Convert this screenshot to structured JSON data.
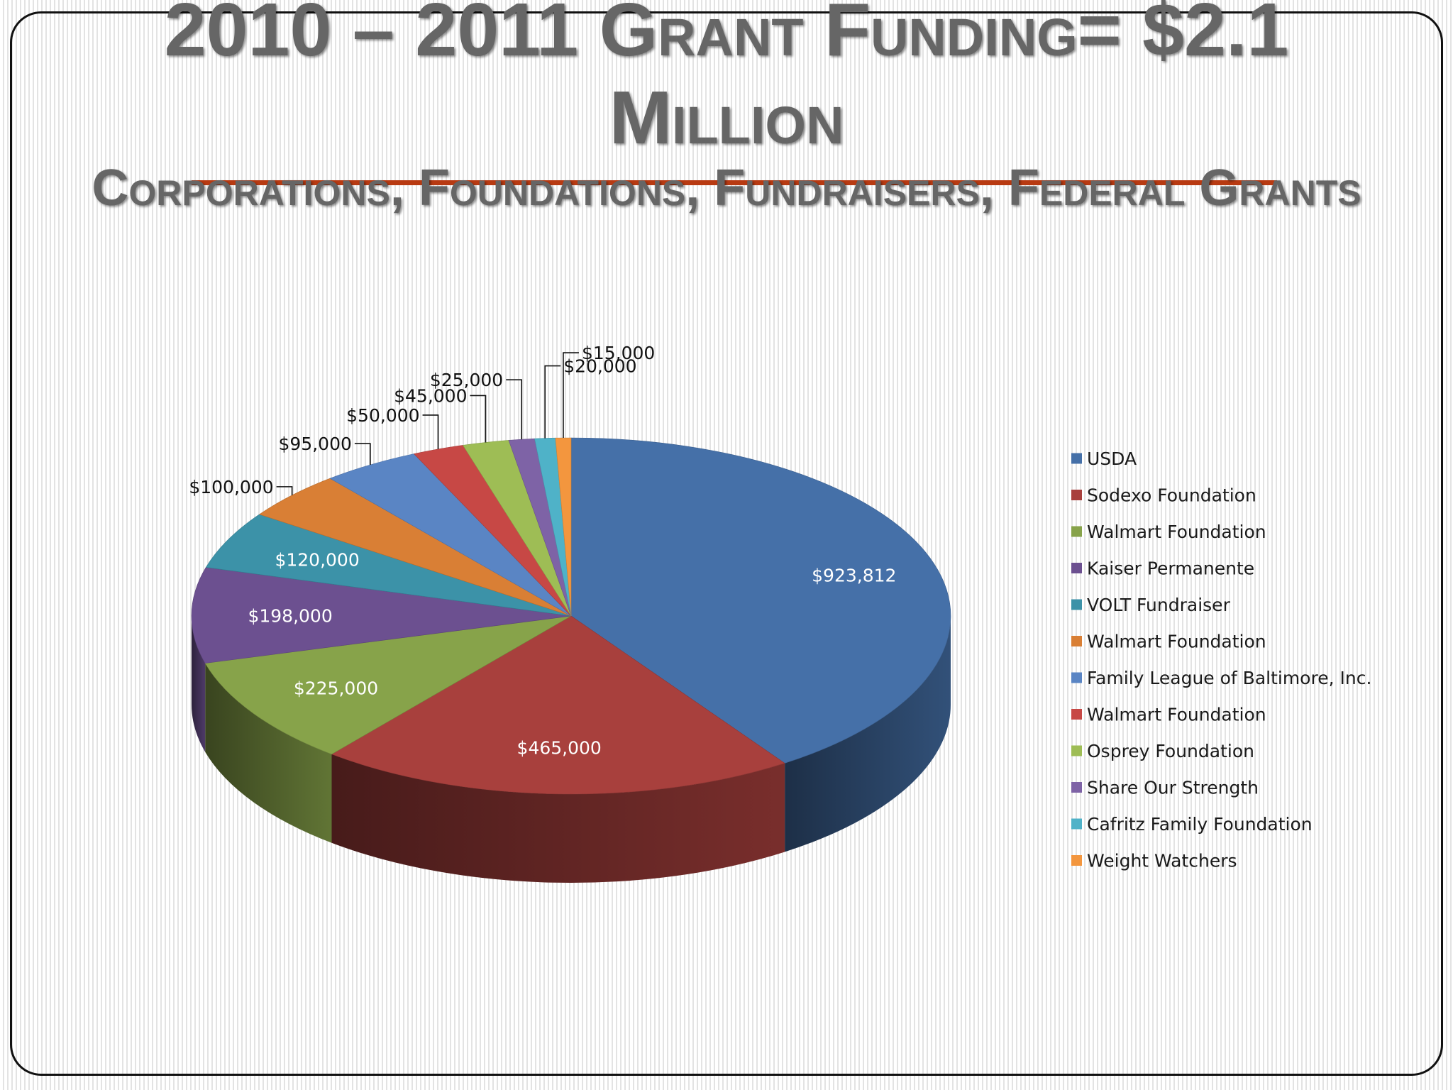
{
  "slide": {
    "title": "2010 – 2011 Grant Funding= $2.1 Million",
    "subtitle": "Corporations, Foundations, Fundraisers, Federal Grants"
  },
  "colors": {
    "title_text": "#666666",
    "accent_rule": "#b83a12",
    "frame": "#111111"
  },
  "chart_data": {
    "type": "pie",
    "style": "3d",
    "legend_position": "right",
    "categories": [
      "USDA",
      "Sodexo Foundation",
      "Walmart Foundation",
      "Kaiser Permanente",
      "VOLT Fundraiser",
      "Walmart Foundation",
      "Family League of Baltimore, Inc.",
      "Walmart Foundation",
      "Osprey Foundation",
      "Share Our Strength",
      "Cafritz Family Foundation",
      "Weight Watchers"
    ],
    "values": [
      923812,
      465000,
      225000,
      198000,
      120000,
      100000,
      95000,
      50000,
      45000,
      25000,
      20000,
      15000
    ],
    "data_labels": [
      "$923,812",
      "$465,000",
      "$225,000",
      "$198,000",
      "$120,000",
      "$100,000",
      "$95,000",
      "$50,000",
      "$45,000",
      "$25,000",
      "$20,000",
      "$15,000"
    ],
    "colors": [
      "#4570a8",
      "#a8403d",
      "#87a34a",
      "#6c5090",
      "#3c92a8",
      "#d97f35",
      "#5a85c4",
      "#c74845",
      "#9ebd55",
      "#7e63a6",
      "#4fb2c8",
      "#f3963e"
    ]
  }
}
